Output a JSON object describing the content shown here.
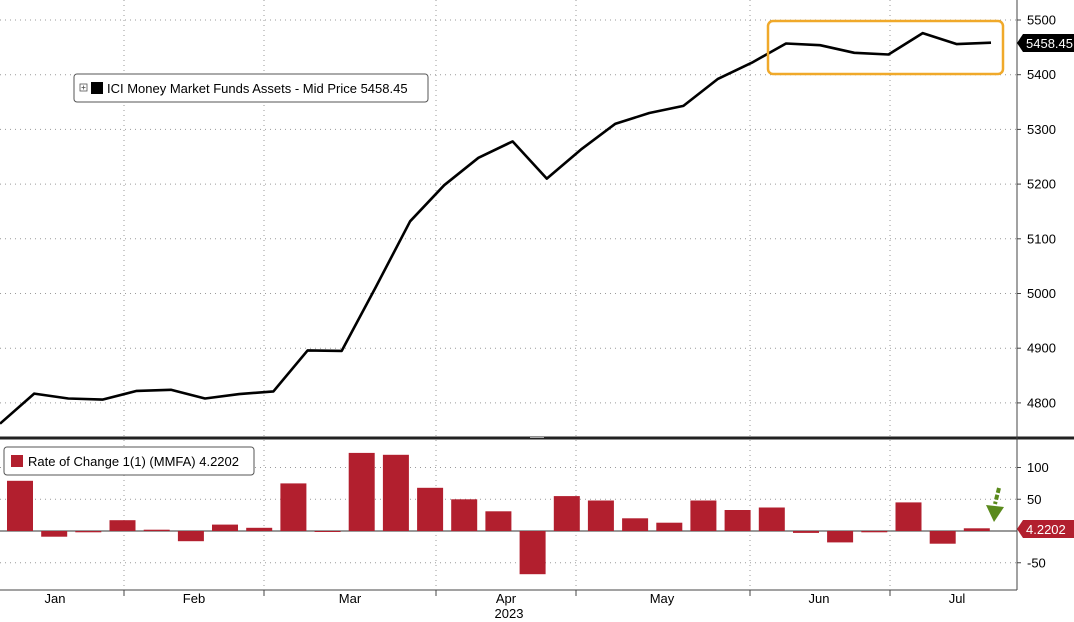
{
  "chart_data": [
    {
      "type": "line",
      "legend": "ICI Money Market Funds Assets - Mid Price 5458.45",
      "last_value_label": "5458.45",
      "ylim": [
        4740,
        5520
      ],
      "yticks": [
        4800,
        4900,
        5000,
        5100,
        5200,
        5300,
        5400,
        5500
      ],
      "grid": true,
      "line_color": "#000000",
      "highlight_color": "#F0A92A",
      "series": [
        {
          "values": [
            4762,
            4817,
            4808,
            4806,
            4822,
            4824,
            4808,
            4816,
            4821,
            4896,
            4895,
            5012,
            5132,
            5198,
            5248,
            5278,
            5210,
            5263,
            5310,
            5330,
            5343,
            5392,
            5422,
            5457,
            5454,
            5440,
            5437,
            5476,
            5456,
            5458.45
          ]
        }
      ]
    },
    {
      "type": "bar",
      "legend": "Rate of Change 1(1) (MMFA) 4.2202",
      "last_value_label": "4.2202",
      "ylim": [
        -85,
        130
      ],
      "yticks": [
        -50,
        50,
        100
      ],
      "grid": true,
      "bar_color": "#B21F2E",
      "arrow_color": "#5A8A1C",
      "series": [
        {
          "values": [
            79,
            -9,
            -2,
            17,
            2,
            -16,
            10,
            5,
            75,
            0,
            123,
            120,
            68,
            50,
            31,
            -68,
            55,
            48,
            20,
            13,
            48,
            33,
            37,
            -3,
            -18,
            -2,
            45,
            -20,
            4.2202
          ]
        }
      ]
    }
  ],
  "x_axis": {
    "months": [
      "Jan",
      "Feb",
      "Mar",
      "Apr",
      "May",
      "Jun",
      "Jul"
    ],
    "year": "2023"
  }
}
